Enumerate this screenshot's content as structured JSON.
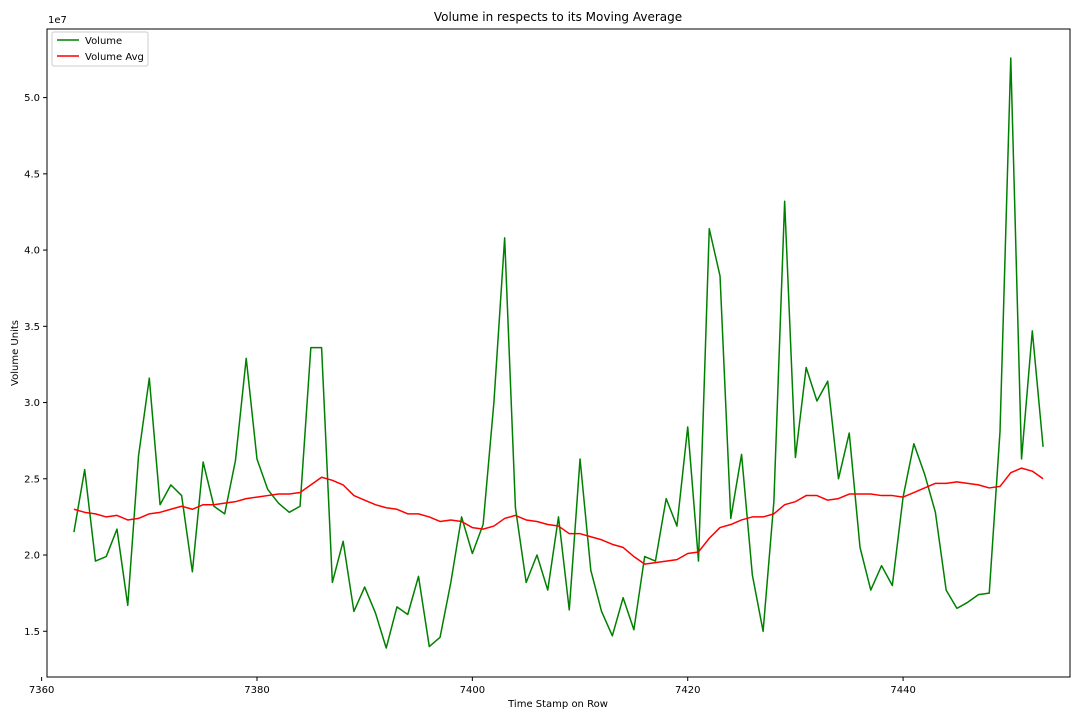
{
  "chart_data": {
    "type": "line",
    "title": "Volume in respects to its Moving Average",
    "xlabel": "Time Stamp on Row",
    "ylabel": "Volume Units",
    "y_offset_label": "1e7",
    "xlim": [
      7360.5,
      7455.5
    ],
    "ylim": [
      1.2,
      5.45
    ],
    "x_ticks": [
      7360,
      7380,
      7400,
      7420,
      7440
    ],
    "y_ticks": [
      1.5,
      2.0,
      2.5,
      3.0,
      3.5,
      4.0,
      4.5,
      5.0
    ],
    "x_tick_labels": [
      "7360",
      "7380",
      "7400",
      "7420",
      "7440"
    ],
    "y_tick_labels": [
      "1.5",
      "2.0",
      "2.5",
      "3.0",
      "3.5",
      "4.0",
      "4.5",
      "5.0"
    ],
    "legend_position": "top-left",
    "grid": false,
    "x": [
      7363,
      7364,
      7365,
      7366,
      7367,
      7368,
      7369,
      7370,
      7371,
      7372,
      7373,
      7374,
      7375,
      7376,
      7377,
      7378,
      7379,
      7380,
      7381,
      7382,
      7383,
      7384,
      7385,
      7386,
      7387,
      7388,
      7389,
      7390,
      7391,
      7392,
      7393,
      7394,
      7395,
      7396,
      7397,
      7398,
      7399,
      7400,
      7401,
      7402,
      7403,
      7404,
      7405,
      7406,
      7407,
      7408,
      7409,
      7410,
      7411,
      7412,
      7413,
      7414,
      7415,
      7416,
      7417,
      7418,
      7419,
      7420,
      7421,
      7422,
      7423,
      7424,
      7425,
      7426,
      7427,
      7428,
      7429,
      7430,
      7431,
      7432,
      7433,
      7434,
      7435,
      7436,
      7437,
      7438,
      7439,
      7440,
      7441,
      7442,
      7443,
      7444,
      7445,
      7446,
      7447,
      7448,
      7449,
      7450,
      7451,
      7452,
      7453
    ],
    "series": [
      {
        "name": "Volume",
        "color": "#008000",
        "values": [
          2.15,
          2.56,
          1.96,
          1.99,
          2.17,
          1.67,
          2.65,
          3.16,
          2.33,
          2.46,
          2.39,
          1.89,
          2.61,
          2.32,
          2.27,
          2.62,
          3.29,
          2.63,
          2.43,
          2.34,
          2.28,
          2.32,
          3.36,
          3.36,
          1.82,
          2.09,
          1.63,
          1.79,
          1.62,
          1.39,
          1.66,
          1.61,
          1.86,
          1.4,
          1.46,
          1.82,
          2.25,
          2.01,
          2.2,
          3.0,
          4.08,
          2.31,
          1.82,
          2.0,
          1.77,
          2.25,
          1.64,
          2.63,
          1.9,
          1.63,
          1.47,
          1.72,
          1.51,
          1.99,
          1.96,
          2.37,
          2.19,
          2.84,
          1.96,
          4.14,
          3.83,
          2.24,
          2.66,
          1.87,
          1.5,
          2.35,
          4.32,
          2.64,
          3.23,
          3.01,
          3.14,
          2.5,
          2.8,
          2.05,
          1.77,
          1.93,
          1.8,
          2.38,
          2.73,
          2.53,
          2.28,
          1.77,
          1.65,
          1.69,
          1.74,
          1.75,
          2.81,
          5.26,
          2.63,
          3.47,
          2.71
        ]
      },
      {
        "name": "Volume Avg",
        "color": "#ff0000",
        "values": [
          2.3,
          2.28,
          2.27,
          2.25,
          2.26,
          2.23,
          2.24,
          2.27,
          2.28,
          2.3,
          2.32,
          2.3,
          2.33,
          2.33,
          2.34,
          2.35,
          2.37,
          2.38,
          2.39,
          2.4,
          2.4,
          2.41,
          2.46,
          2.51,
          2.49,
          2.46,
          2.39,
          2.36,
          2.33,
          2.31,
          2.3,
          2.27,
          2.27,
          2.25,
          2.22,
          2.23,
          2.22,
          2.18,
          2.17,
          2.19,
          2.24,
          2.26,
          2.23,
          2.22,
          2.2,
          2.19,
          2.14,
          2.14,
          2.12,
          2.1,
          2.07,
          2.05,
          1.99,
          1.94,
          1.95,
          1.96,
          1.97,
          2.01,
          2.02,
          2.11,
          2.18,
          2.2,
          2.23,
          2.25,
          2.25,
          2.27,
          2.33,
          2.35,
          2.39,
          2.39,
          2.36,
          2.37,
          2.4,
          2.4,
          2.4,
          2.39,
          2.39,
          2.38,
          2.41,
          2.44,
          2.47,
          2.47,
          2.48,
          2.47,
          2.46,
          2.44,
          2.45,
          2.54,
          2.57,
          2.55,
          2.5
        ]
      }
    ]
  }
}
